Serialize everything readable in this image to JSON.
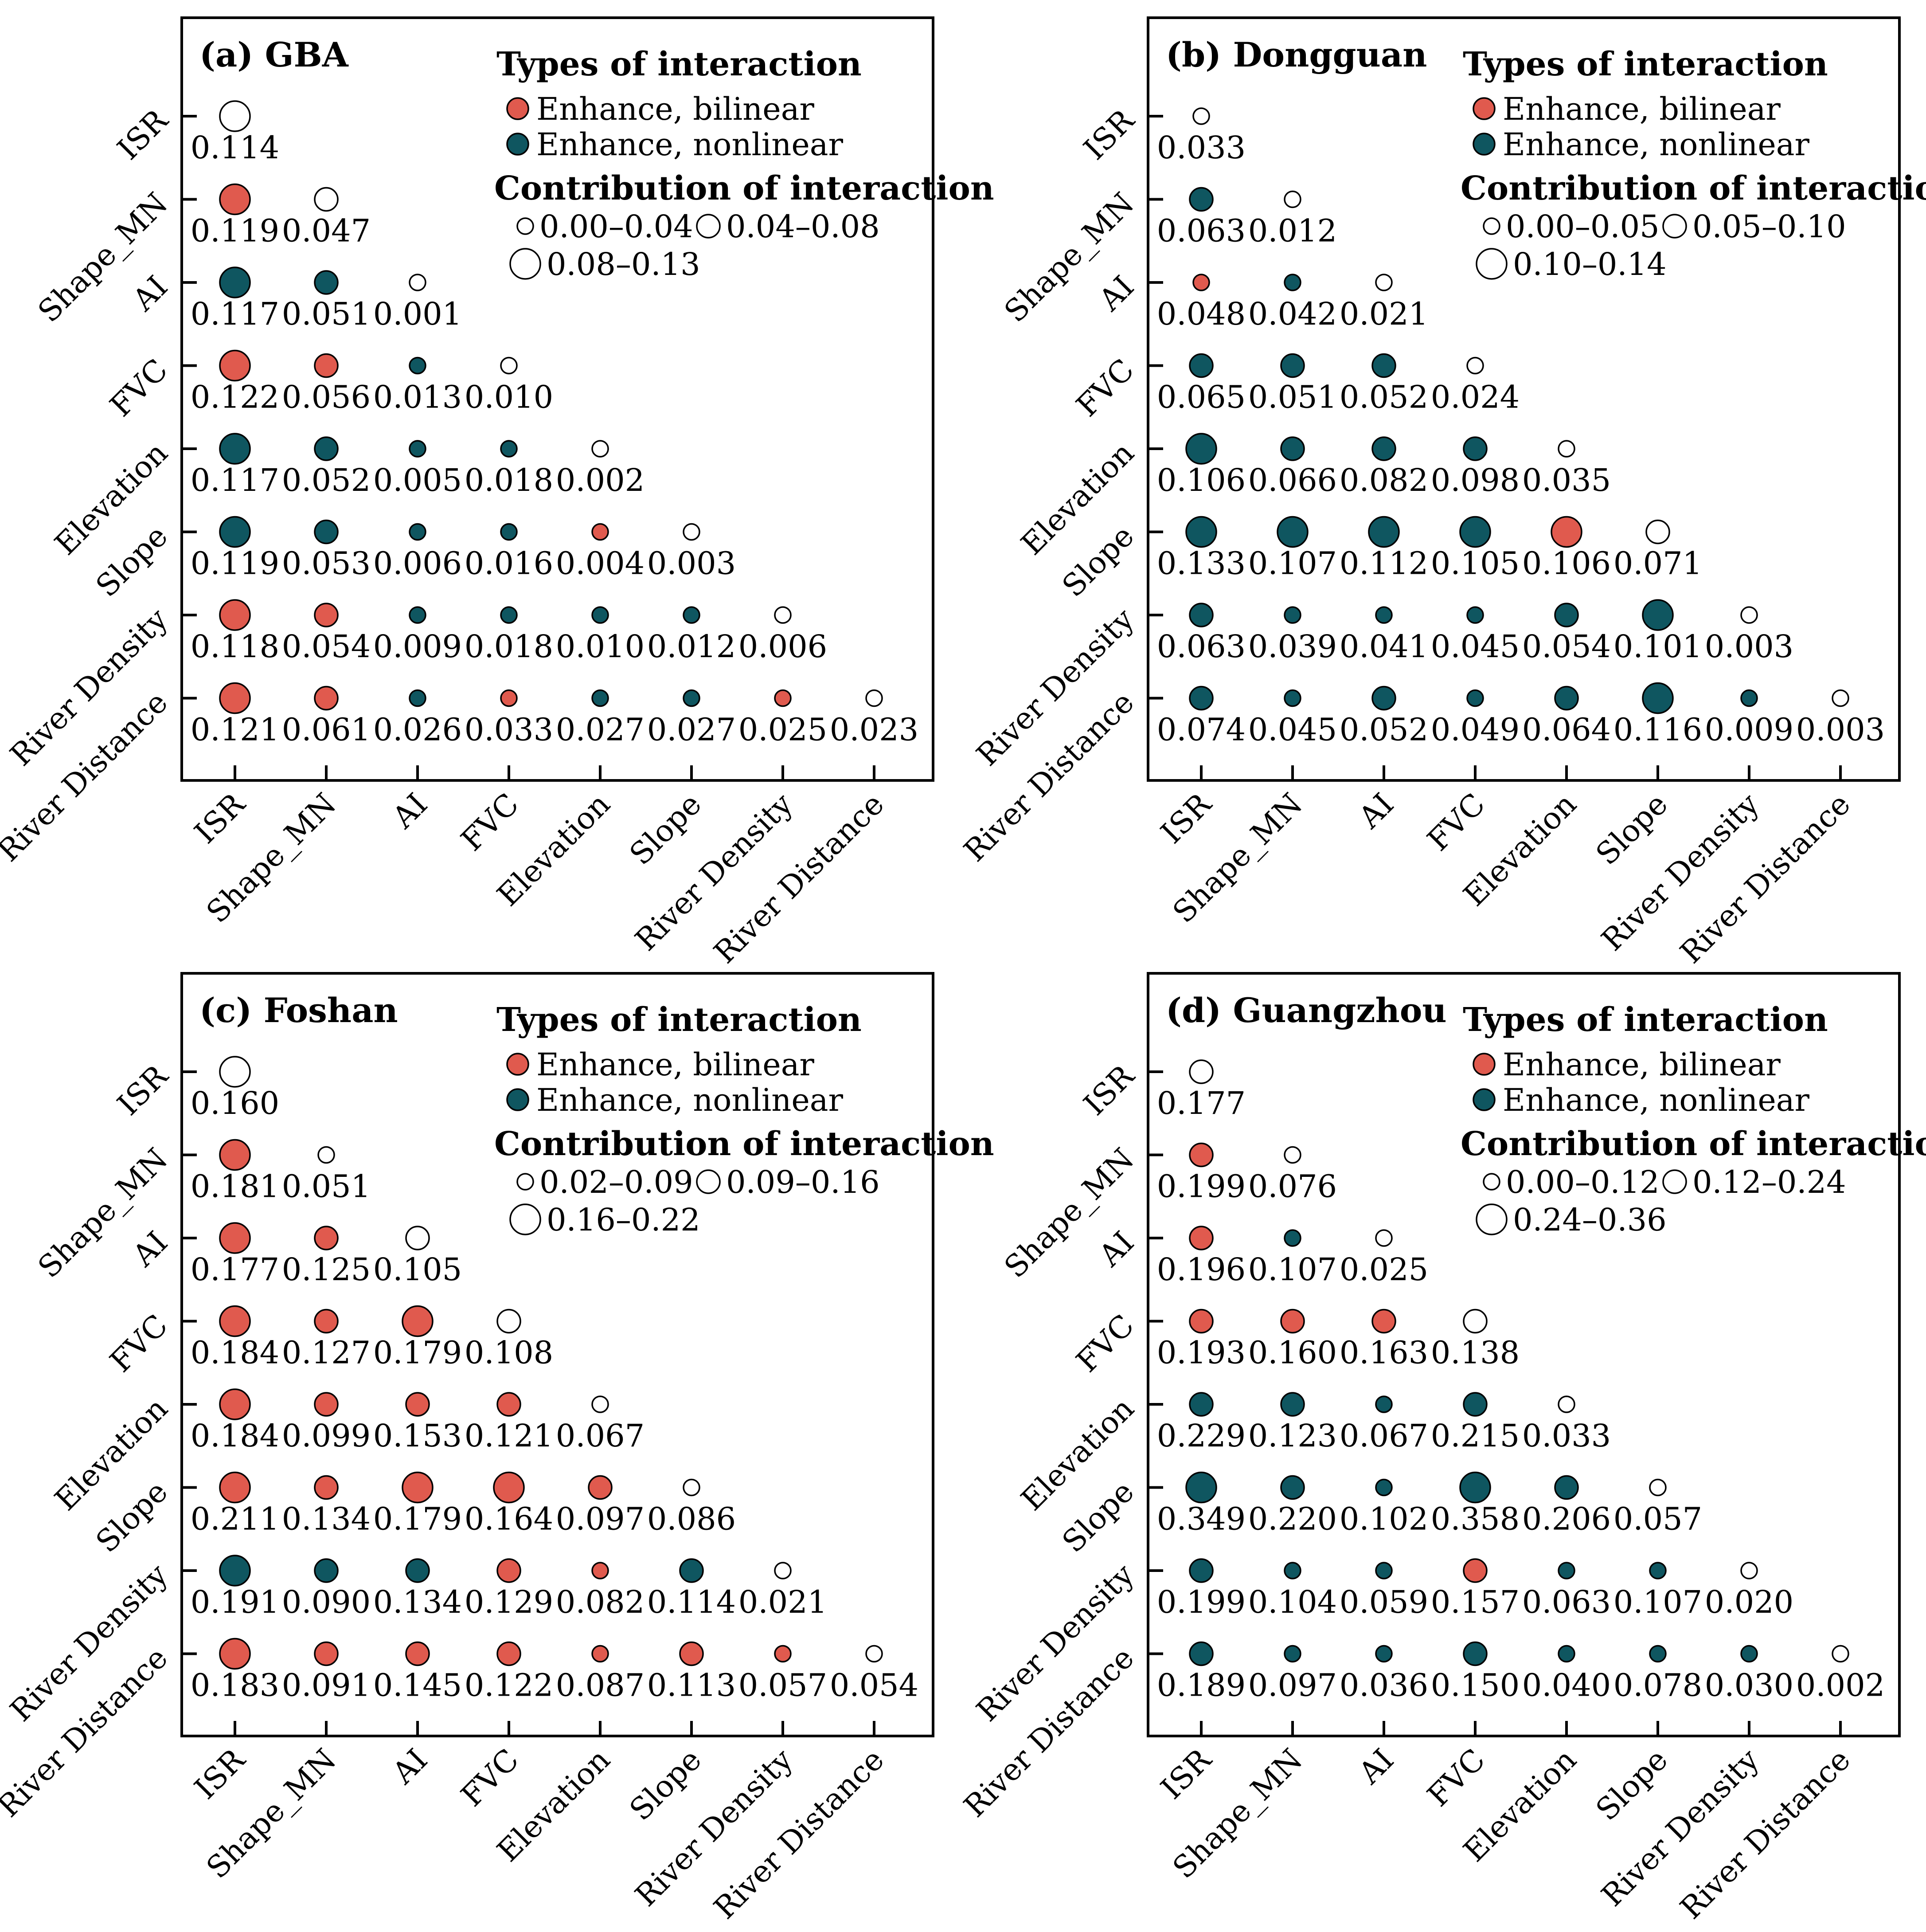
{
  "chart_data": [
    {
      "type": "scatter",
      "title": "(a) GBA",
      "variables": [
        "ISR",
        "Shape_MN",
        "AI",
        "FVC",
        "Elevation",
        "Slope",
        "River Density",
        "River Distance"
      ],
      "legend": {
        "types_title": "Types of interaction",
        "types": [
          {
            "key": "b",
            "label": "Enhance, bilinear",
            "color": "#e05a4e"
          },
          {
            "key": "n",
            "label": "Enhance, nonlinear",
            "color": "#0f5660"
          }
        ],
        "contrib_title": "Contribution of interaction",
        "size_classes": [
          "0.00–0.04",
          "0.04–0.08",
          "0.08–0.13"
        ],
        "thresholds": [
          0.04,
          0.08
        ]
      },
      "matrix": [
        [
          {
            "v": 0.114,
            "t": "w"
          }
        ],
        [
          {
            "v": 0.119,
            "t": "b"
          },
          {
            "v": 0.047,
            "t": "w"
          }
        ],
        [
          {
            "v": 0.117,
            "t": "n"
          },
          {
            "v": 0.051,
            "t": "n"
          },
          {
            "v": 0.001,
            "t": "w"
          }
        ],
        [
          {
            "v": 0.122,
            "t": "b"
          },
          {
            "v": 0.056,
            "t": "b"
          },
          {
            "v": 0.013,
            "t": "n"
          },
          {
            "v": 0.01,
            "t": "w"
          }
        ],
        [
          {
            "v": 0.117,
            "t": "n"
          },
          {
            "v": 0.052,
            "t": "n"
          },
          {
            "v": 0.005,
            "t": "n"
          },
          {
            "v": 0.018,
            "t": "n"
          },
          {
            "v": 0.002,
            "t": "w"
          }
        ],
        [
          {
            "v": 0.119,
            "t": "n"
          },
          {
            "v": 0.053,
            "t": "n"
          },
          {
            "v": 0.006,
            "t": "n"
          },
          {
            "v": 0.016,
            "t": "n"
          },
          {
            "v": 0.004,
            "t": "b"
          },
          {
            "v": 0.003,
            "t": "w"
          }
        ],
        [
          {
            "v": 0.118,
            "t": "b"
          },
          {
            "v": 0.054,
            "t": "b"
          },
          {
            "v": 0.009,
            "t": "n"
          },
          {
            "v": 0.018,
            "t": "n"
          },
          {
            "v": 0.01,
            "t": "n"
          },
          {
            "v": 0.012,
            "t": "n"
          },
          {
            "v": 0.006,
            "t": "w"
          }
        ],
        [
          {
            "v": 0.121,
            "t": "b"
          },
          {
            "v": 0.061,
            "t": "b"
          },
          {
            "v": 0.026,
            "t": "n"
          },
          {
            "v": 0.033,
            "t": "b"
          },
          {
            "v": 0.027,
            "t": "n"
          },
          {
            "v": 0.027,
            "t": "n"
          },
          {
            "v": 0.025,
            "t": "b"
          },
          {
            "v": 0.023,
            "t": "w"
          }
        ]
      ]
    },
    {
      "type": "scatter",
      "title": "(b) Dongguan",
      "variables": [
        "ISR",
        "Shape_MN",
        "AI",
        "FVC",
        "Elevation",
        "Slope",
        "River Density",
        "River Distance"
      ],
      "legend": {
        "types_title": "Types of interaction",
        "types": [
          {
            "key": "b",
            "label": "Enhance, bilinear",
            "color": "#e05a4e"
          },
          {
            "key": "n",
            "label": "Enhance, nonlinear",
            "color": "#0f5660"
          }
        ],
        "contrib_title": "Contribution of interaction",
        "size_classes": [
          "0.00–0.05",
          "0.05–0.10",
          "0.10–0.14"
        ],
        "thresholds": [
          0.05,
          0.1
        ]
      },
      "matrix": [
        [
          {
            "v": 0.033,
            "t": "w"
          }
        ],
        [
          {
            "v": 0.063,
            "t": "n"
          },
          {
            "v": 0.012,
            "t": "w"
          }
        ],
        [
          {
            "v": 0.048,
            "t": "b"
          },
          {
            "v": 0.042,
            "t": "n"
          },
          {
            "v": 0.021,
            "t": "w"
          }
        ],
        [
          {
            "v": 0.065,
            "t": "n"
          },
          {
            "v": 0.051,
            "t": "n"
          },
          {
            "v": 0.052,
            "t": "n"
          },
          {
            "v": 0.024,
            "t": "w"
          }
        ],
        [
          {
            "v": 0.106,
            "t": "n"
          },
          {
            "v": 0.066,
            "t": "n"
          },
          {
            "v": 0.082,
            "t": "n"
          },
          {
            "v": 0.098,
            "t": "n"
          },
          {
            "v": 0.035,
            "t": "w"
          }
        ],
        [
          {
            "v": 0.133,
            "t": "n"
          },
          {
            "v": 0.107,
            "t": "n"
          },
          {
            "v": 0.112,
            "t": "n"
          },
          {
            "v": 0.105,
            "t": "n"
          },
          {
            "v": 0.106,
            "t": "b"
          },
          {
            "v": 0.071,
            "t": "w"
          }
        ],
        [
          {
            "v": 0.063,
            "t": "n"
          },
          {
            "v": 0.039,
            "t": "n"
          },
          {
            "v": 0.041,
            "t": "n"
          },
          {
            "v": 0.045,
            "t": "n"
          },
          {
            "v": 0.054,
            "t": "n"
          },
          {
            "v": 0.101,
            "t": "n"
          },
          {
            "v": 0.003,
            "t": "w"
          }
        ],
        [
          {
            "v": 0.074,
            "t": "n"
          },
          {
            "v": 0.045,
            "t": "n"
          },
          {
            "v": 0.052,
            "t": "n"
          },
          {
            "v": 0.049,
            "t": "n"
          },
          {
            "v": 0.064,
            "t": "n"
          },
          {
            "v": 0.116,
            "t": "n"
          },
          {
            "v": 0.009,
            "t": "n"
          },
          {
            "v": 0.003,
            "t": "w"
          }
        ]
      ]
    },
    {
      "type": "scatter",
      "title": "(c) Foshan",
      "variables": [
        "ISR",
        "Shape_MN",
        "AI",
        "FVC",
        "Elevation",
        "Slope",
        "River Density",
        "River Distance"
      ],
      "legend": {
        "types_title": "Types of interaction",
        "types": [
          {
            "key": "b",
            "label": "Enhance, bilinear",
            "color": "#e05a4e"
          },
          {
            "key": "n",
            "label": "Enhance, nonlinear",
            "color": "#0f5660"
          }
        ],
        "contrib_title": "Contribution of interaction",
        "size_classes": [
          "0.02–0.09",
          "0.09–0.16",
          "0.16–0.22"
        ],
        "thresholds": [
          0.09,
          0.16
        ]
      },
      "matrix": [
        [
          {
            "v": 0.16,
            "t": "w"
          }
        ],
        [
          {
            "v": 0.181,
            "t": "b"
          },
          {
            "v": 0.051,
            "t": "w"
          }
        ],
        [
          {
            "v": 0.177,
            "t": "b"
          },
          {
            "v": 0.125,
            "t": "b"
          },
          {
            "v": 0.105,
            "t": "w"
          }
        ],
        [
          {
            "v": 0.184,
            "t": "b"
          },
          {
            "v": 0.127,
            "t": "b"
          },
          {
            "v": 0.179,
            "t": "b"
          },
          {
            "v": 0.108,
            "t": "w"
          }
        ],
        [
          {
            "v": 0.184,
            "t": "b"
          },
          {
            "v": 0.099,
            "t": "b"
          },
          {
            "v": 0.153,
            "t": "b"
          },
          {
            "v": 0.121,
            "t": "b"
          },
          {
            "v": 0.067,
            "t": "w"
          }
        ],
        [
          {
            "v": 0.211,
            "t": "b"
          },
          {
            "v": 0.134,
            "t": "b"
          },
          {
            "v": 0.179,
            "t": "b"
          },
          {
            "v": 0.164,
            "t": "b"
          },
          {
            "v": 0.097,
            "t": "b"
          },
          {
            "v": 0.086,
            "t": "w"
          }
        ],
        [
          {
            "v": 0.191,
            "t": "n"
          },
          {
            "v": 0.09,
            "t": "n"
          },
          {
            "v": 0.134,
            "t": "n"
          },
          {
            "v": 0.129,
            "t": "b"
          },
          {
            "v": 0.082,
            "t": "b"
          },
          {
            "v": 0.114,
            "t": "n"
          },
          {
            "v": 0.021,
            "t": "w"
          }
        ],
        [
          {
            "v": 0.183,
            "t": "b"
          },
          {
            "v": 0.091,
            "t": "b"
          },
          {
            "v": 0.145,
            "t": "b"
          },
          {
            "v": 0.122,
            "t": "b"
          },
          {
            "v": 0.087,
            "t": "b"
          },
          {
            "v": 0.113,
            "t": "b"
          },
          {
            "v": 0.057,
            "t": "b"
          },
          {
            "v": 0.054,
            "t": "w"
          }
        ]
      ]
    },
    {
      "type": "scatter",
      "title": "(d) Guangzhou",
      "variables": [
        "ISR",
        "Shape_MN",
        "AI",
        "FVC",
        "Elevation",
        "Slope",
        "River Density",
        "River Distance"
      ],
      "legend": {
        "types_title": "Types of interaction",
        "types": [
          {
            "key": "b",
            "label": "Enhance, bilinear",
            "color": "#e05a4e"
          },
          {
            "key": "n",
            "label": "Enhance, nonlinear",
            "color": "#0f5660"
          }
        ],
        "contrib_title": "Contribution of interaction",
        "size_classes": [
          "0.00–0.12",
          "0.12–0.24",
          "0.24–0.36"
        ],
        "thresholds": [
          0.12,
          0.24
        ]
      },
      "matrix": [
        [
          {
            "v": 0.177,
            "t": "w"
          }
        ],
        [
          {
            "v": 0.199,
            "t": "b"
          },
          {
            "v": 0.076,
            "t": "w"
          }
        ],
        [
          {
            "v": 0.196,
            "t": "b"
          },
          {
            "v": 0.107,
            "t": "n"
          },
          {
            "v": 0.025,
            "t": "w"
          }
        ],
        [
          {
            "v": 0.193,
            "t": "b"
          },
          {
            "v": 0.16,
            "t": "b"
          },
          {
            "v": 0.163,
            "t": "b"
          },
          {
            "v": 0.138,
            "t": "w"
          }
        ],
        [
          {
            "v": 0.229,
            "t": "n"
          },
          {
            "v": 0.123,
            "t": "n"
          },
          {
            "v": 0.067,
            "t": "n"
          },
          {
            "v": 0.215,
            "t": "n"
          },
          {
            "v": 0.033,
            "t": "w"
          }
        ],
        [
          {
            "v": 0.349,
            "t": "n"
          },
          {
            "v": 0.22,
            "t": "n"
          },
          {
            "v": 0.102,
            "t": "n"
          },
          {
            "v": 0.358,
            "t": "n"
          },
          {
            "v": 0.206,
            "t": "n"
          },
          {
            "v": 0.057,
            "t": "w"
          }
        ],
        [
          {
            "v": 0.199,
            "t": "n"
          },
          {
            "v": 0.104,
            "t": "n"
          },
          {
            "v": 0.059,
            "t": "n"
          },
          {
            "v": 0.157,
            "t": "b"
          },
          {
            "v": 0.063,
            "t": "n"
          },
          {
            "v": 0.107,
            "t": "n"
          },
          {
            "v": 0.02,
            "t": "w"
          }
        ],
        [
          {
            "v": 0.189,
            "t": "n"
          },
          {
            "v": 0.097,
            "t": "n"
          },
          {
            "v": 0.036,
            "t": "n"
          },
          {
            "v": 0.15,
            "t": "n"
          },
          {
            "v": 0.04,
            "t": "n"
          },
          {
            "v": 0.078,
            "t": "n"
          },
          {
            "v": 0.03,
            "t": "n"
          },
          {
            "v": 0.002,
            "t": "w"
          }
        ]
      ]
    }
  ]
}
